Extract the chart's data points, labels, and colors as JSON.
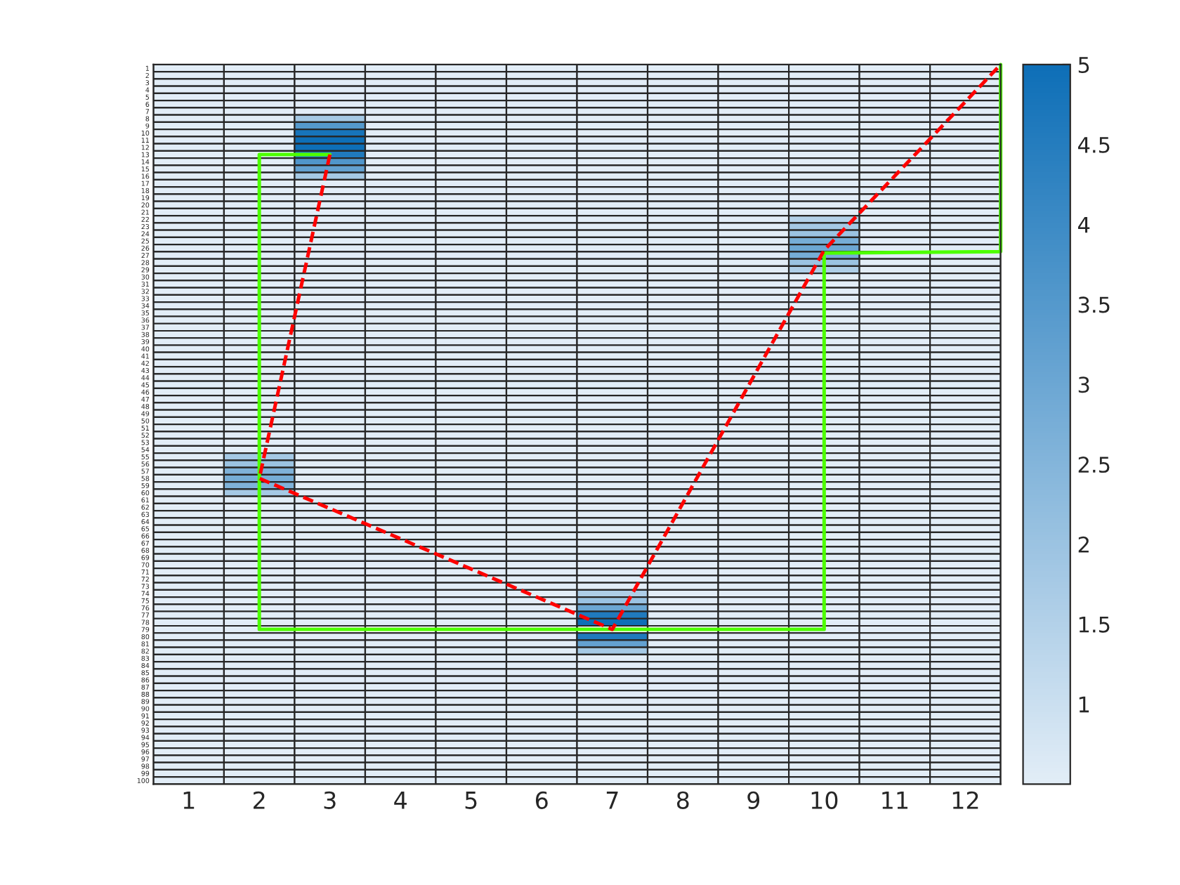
{
  "chart_data": {
    "type": "heatmap",
    "x": [
      1,
      2,
      3,
      4,
      5,
      6,
      7,
      8,
      9,
      10,
      11,
      12
    ],
    "xlim": [
      0.5,
      12.5
    ],
    "xticks": [
      1,
      2,
      3,
      4,
      5,
      6,
      7,
      8,
      9,
      10,
      11,
      12
    ],
    "ylim": [
      100.5,
      0.5
    ],
    "yticks": [
      1,
      2,
      3,
      4,
      5,
      6,
      7,
      8,
      9,
      10,
      11,
      12,
      13,
      14,
      15,
      16,
      17,
      18,
      19,
      20,
      21,
      22,
      23,
      24,
      25,
      26,
      27,
      28,
      29,
      30,
      31,
      32,
      33,
      34,
      35,
      36,
      37,
      38,
      39,
      40,
      41,
      42,
      43,
      44,
      45,
      46,
      47,
      48,
      49,
      50,
      51,
      52,
      53,
      54,
      55,
      56,
      57,
      58,
      59,
      60,
      61,
      62,
      63,
      64,
      65,
      66,
      67,
      68,
      69,
      70,
      71,
      72,
      73,
      74,
      75,
      76,
      77,
      78,
      79,
      80,
      81,
      82,
      83,
      84,
      85,
      86,
      87,
      88,
      89,
      90,
      91,
      92,
      93,
      94,
      95,
      96,
      97,
      98,
      99,
      100
    ],
    "colors": [
      "#e2edf7",
      "#0e6fb7"
    ],
    "clim": [
      0.5,
      5
    ],
    "cticks": [
      1,
      1.5,
      2,
      2.5,
      3,
      3.5,
      4,
      4.5,
      5
    ],
    "cells": [
      [
        0.5,
        0.5,
        0.5,
        0.5,
        0.5,
        0.5,
        0.5,
        0.5,
        0.5,
        0.5,
        0.5,
        0.5
      ],
      [
        0.5,
        0.5,
        0.5,
        0.5,
        0.5,
        0.5,
        0.5,
        0.5,
        0.5,
        0.5,
        0.5,
        0.5
      ],
      [
        0.5,
        0.5,
        0.5,
        0.5,
        0.5,
        0.5,
        0.5,
        0.5,
        0.5,
        0.5,
        0.5,
        0.5
      ],
      [
        0.5,
        0.5,
        0.5,
        0.5,
        0.5,
        0.5,
        0.5,
        0.5,
        0.5,
        0.5,
        0.5,
        0.5
      ],
      [
        0.5,
        0.5,
        0.5,
        0.5,
        0.5,
        0.5,
        0.5,
        0.5,
        0.5,
        0.5,
        0.5,
        0.5
      ],
      [
        0.5,
        0.5,
        0.5,
        0.5,
        0.5,
        0.5,
        0.5,
        0.5,
        0.5,
        0.5,
        0.5,
        0.5
      ],
      [
        0.5,
        0.5,
        0.5,
        0.5,
        0.5,
        0.5,
        0.5,
        0.5,
        0.5,
        0.5,
        0.5,
        0.5
      ],
      [
        0.5,
        0.5,
        1.8,
        0.5,
        0.5,
        0.5,
        0.5,
        0.5,
        0.5,
        0.5,
        0.5,
        0.5
      ],
      [
        0.5,
        0.5,
        3.5,
        0.5,
        0.5,
        0.5,
        0.5,
        0.5,
        0.5,
        0.5,
        0.5,
        0.5
      ],
      [
        0.5,
        0.5,
        4.8,
        0.5,
        0.5,
        0.5,
        0.5,
        0.5,
        0.5,
        0.5,
        0.5,
        0.5
      ],
      [
        0.5,
        0.5,
        5,
        0.5,
        0.5,
        0.5,
        0.5,
        0.5,
        0.5,
        0.5,
        0.5,
        0.5
      ],
      [
        0.5,
        0.5,
        5,
        0.5,
        0.5,
        0.5,
        0.5,
        0.5,
        0.5,
        0.5,
        0.5,
        0.5
      ],
      [
        0.5,
        0.5,
        4.6,
        0.5,
        0.5,
        0.5,
        0.5,
        0.5,
        0.5,
        0.5,
        0.5,
        0.5
      ],
      [
        0.5,
        0.5,
        3.6,
        0.5,
        0.5,
        0.5,
        0.5,
        0.5,
        0.5,
        0.5,
        0.5,
        0.5
      ],
      [
        0.5,
        0.5,
        3.2,
        0.5,
        0.5,
        0.5,
        0.5,
        0.5,
        0.5,
        0.5,
        0.5,
        0.5
      ],
      [
        0.5,
        0.5,
        1.8,
        0.5,
        0.5,
        0.5,
        0.5,
        0.5,
        0.5,
        0.5,
        0.5,
        0.5
      ],
      [
        0.5,
        0.5,
        0.5,
        0.5,
        0.5,
        0.5,
        0.5,
        0.5,
        0.5,
        0.5,
        0.5,
        0.5
      ],
      [
        0.5,
        0.5,
        0.5,
        0.5,
        0.5,
        0.5,
        0.5,
        0.5,
        0.5,
        0.5,
        0.5,
        0.5
      ],
      [
        0.5,
        0.5,
        0.5,
        0.5,
        0.5,
        0.5,
        0.5,
        0.5,
        0.5,
        0.5,
        0.5,
        0.5
      ],
      [
        0.5,
        0.5,
        0.5,
        0.5,
        0.5,
        0.5,
        0.5,
        0.5,
        0.5,
        0.5,
        0.5,
        0.5
      ],
      [
        0.5,
        0.5,
        0.5,
        0.5,
        0.5,
        0.5,
        0.5,
        0.5,
        0.5,
        0.5,
        0.5,
        0.5
      ],
      [
        0.5,
        0.5,
        0.5,
        0.5,
        0.5,
        0.5,
        0.5,
        0.5,
        0.5,
        1.5,
        0.5,
        0.5
      ],
      [
        0.5,
        0.5,
        0.5,
        0.5,
        0.5,
        0.5,
        0.5,
        0.5,
        0.5,
        1.8,
        0.5,
        0.5
      ],
      [
        0.5,
        0.5,
        0.5,
        0.5,
        0.5,
        0.5,
        0.5,
        0.5,
        0.5,
        2,
        0.5,
        0.5
      ],
      [
        0.5,
        0.5,
        0.5,
        0.5,
        0.5,
        0.5,
        0.5,
        0.5,
        0.5,
        2.8,
        0.5,
        0.5
      ],
      [
        0.5,
        0.5,
        0.5,
        0.5,
        0.5,
        0.5,
        0.5,
        0.5,
        0.5,
        3,
        0.5,
        0.5
      ],
      [
        0.5,
        0.5,
        0.5,
        0.5,
        0.5,
        0.5,
        0.5,
        0.5,
        0.5,
        2.8,
        0.5,
        0.5
      ],
      [
        0.5,
        0.5,
        0.5,
        0.5,
        0.5,
        0.5,
        0.5,
        0.5,
        0.5,
        2,
        0.5,
        0.5
      ],
      [
        0.5,
        0.5,
        0.5,
        0.5,
        0.5,
        0.5,
        0.5,
        0.5,
        0.5,
        1.6,
        0.5,
        0.5
      ],
      [
        0.5,
        0.5,
        0.5,
        0.5,
        0.5,
        0.5,
        0.5,
        0.5,
        0.5,
        0.5,
        0.5,
        0.5
      ],
      [
        0.5,
        0.5,
        0.5,
        0.5,
        0.5,
        0.5,
        0.5,
        0.5,
        0.5,
        0.5,
        0.5,
        0.5
      ],
      [
        0.5,
        0.5,
        0.5,
        0.5,
        0.5,
        0.5,
        0.5,
        0.5,
        0.5,
        0.5,
        0.5,
        0.5
      ],
      [
        0.5,
        0.5,
        0.5,
        0.5,
        0.5,
        0.5,
        0.5,
        0.5,
        0.5,
        0.5,
        0.5,
        0.5
      ],
      [
        0.5,
        0.5,
        0.5,
        0.5,
        0.5,
        0.5,
        0.5,
        0.5,
        0.5,
        0.5,
        0.5,
        0.5
      ],
      [
        0.5,
        0.5,
        0.5,
        0.5,
        0.5,
        0.5,
        0.5,
        0.5,
        0.5,
        0.5,
        0.5,
        0.5
      ],
      [
        0.5,
        0.5,
        0.5,
        0.5,
        0.5,
        0.5,
        0.5,
        0.5,
        0.5,
        0.5,
        0.5,
        0.5
      ],
      [
        0.5,
        0.5,
        0.5,
        0.5,
        0.5,
        0.5,
        0.5,
        0.5,
        0.5,
        0.5,
        0.5,
        0.5
      ],
      [
        0.5,
        0.5,
        0.5,
        0.5,
        0.5,
        0.5,
        0.5,
        0.5,
        0.5,
        0.5,
        0.5,
        0.5
      ],
      [
        0.5,
        0.5,
        0.5,
        0.5,
        0.5,
        0.5,
        0.5,
        0.5,
        0.5,
        0.5,
        0.5,
        0.5
      ],
      [
        0.5,
        0.5,
        0.5,
        0.5,
        0.5,
        0.5,
        0.5,
        0.5,
        0.5,
        0.5,
        0.5,
        0.5
      ],
      [
        0.5,
        0.5,
        0.5,
        0.5,
        0.5,
        0.5,
        0.5,
        0.5,
        0.5,
        0.5,
        0.5,
        0.5
      ],
      [
        0.5,
        0.5,
        0.5,
        0.5,
        0.5,
        0.5,
        0.5,
        0.5,
        0.5,
        0.5,
        0.5,
        0.5
      ],
      [
        0.5,
        0.5,
        0.5,
        0.5,
        0.5,
        0.5,
        0.5,
        0.5,
        0.5,
        0.5,
        0.5,
        0.5
      ],
      [
        0.5,
        0.5,
        0.5,
        0.5,
        0.5,
        0.5,
        0.5,
        0.5,
        0.5,
        0.5,
        0.5,
        0.5
      ],
      [
        0.5,
        0.5,
        0.5,
        0.5,
        0.5,
        0.5,
        0.5,
        0.5,
        0.5,
        0.5,
        0.5,
        0.5
      ],
      [
        0.5,
        0.5,
        0.5,
        0.5,
        0.5,
        0.5,
        0.5,
        0.5,
        0.5,
        0.5,
        0.5,
        0.5
      ],
      [
        0.5,
        0.5,
        0.5,
        0.5,
        0.5,
        0.5,
        0.5,
        0.5,
        0.5,
        0.5,
        0.5,
        0.5
      ],
      [
        0.5,
        0.5,
        0.5,
        0.5,
        0.5,
        0.5,
        0.5,
        0.5,
        0.5,
        0.5,
        0.5,
        0.5
      ],
      [
        0.5,
        0.5,
        0.5,
        0.5,
        0.5,
        0.5,
        0.5,
        0.5,
        0.5,
        0.5,
        0.5,
        0.5
      ],
      [
        0.5,
        0.5,
        0.5,
        0.5,
        0.5,
        0.5,
        0.5,
        0.5,
        0.5,
        0.5,
        0.5,
        0.5
      ],
      [
        0.5,
        0.5,
        0.5,
        0.5,
        0.5,
        0.5,
        0.5,
        0.5,
        0.5,
        0.5,
        0.5,
        0.5
      ],
      [
        0.5,
        0.5,
        0.5,
        0.5,
        0.5,
        0.5,
        0.5,
        0.5,
        0.5,
        0.5,
        0.5,
        0.5
      ],
      [
        0.5,
        0.5,
        0.5,
        0.5,
        0.5,
        0.5,
        0.5,
        0.5,
        0.5,
        0.5,
        0.5,
        0.5
      ],
      [
        0.5,
        0.5,
        0.5,
        0.5,
        0.5,
        0.5,
        0.5,
        0.5,
        0.5,
        0.5,
        0.5,
        0.5
      ],
      [
        0.5,
        1.8,
        0.5,
        0.5,
        0.5,
        0.5,
        0.5,
        0.5,
        0.5,
        0.5,
        0.5,
        0.5
      ],
      [
        0.5,
        2,
        0.5,
        0.5,
        0.5,
        0.5,
        0.5,
        0.5,
        0.5,
        0.5,
        0.5,
        0.5
      ],
      [
        0.5,
        2.6,
        0.5,
        0.5,
        0.5,
        0.5,
        0.5,
        0.5,
        0.5,
        0.5,
        0.5,
        0.5
      ],
      [
        0.5,
        2.8,
        0.5,
        0.5,
        0.5,
        0.5,
        0.5,
        0.5,
        0.5,
        0.5,
        0.5,
        0.5
      ],
      [
        0.5,
        2.6,
        0.5,
        0.5,
        0.5,
        0.5,
        0.5,
        0.5,
        0.5,
        0.5,
        0.5,
        0.5
      ],
      [
        0.5,
        1.8,
        0.5,
        0.5,
        0.5,
        0.5,
        0.5,
        0.5,
        0.5,
        0.5,
        0.5,
        0.5
      ],
      [
        0.5,
        0.5,
        0.5,
        0.5,
        0.5,
        0.5,
        0.5,
        0.5,
        0.5,
        0.5,
        0.5,
        0.5
      ],
      [
        0.5,
        0.5,
        0.5,
        0.5,
        0.5,
        0.5,
        0.5,
        0.5,
        0.5,
        0.5,
        0.5,
        0.5
      ],
      [
        0.5,
        0.5,
        0.5,
        0.5,
        0.5,
        0.5,
        0.5,
        0.5,
        0.5,
        0.5,
        0.5,
        0.5
      ],
      [
        0.5,
        0.5,
        0.5,
        0.5,
        0.5,
        0.5,
        0.5,
        0.5,
        0.5,
        0.5,
        0.5,
        0.5
      ],
      [
        0.5,
        0.5,
        0.5,
        0.5,
        0.5,
        0.5,
        0.5,
        0.5,
        0.5,
        0.5,
        0.5,
        0.5
      ],
      [
        0.5,
        0.5,
        0.5,
        0.5,
        0.5,
        0.5,
        0.5,
        0.5,
        0.5,
        0.5,
        0.5,
        0.5
      ],
      [
        0.5,
        0.5,
        0.5,
        0.5,
        0.5,
        0.5,
        0.5,
        0.5,
        0.5,
        0.5,
        0.5,
        0.5
      ],
      [
        0.5,
        0.5,
        0.5,
        0.5,
        0.5,
        0.5,
        0.5,
        0.5,
        0.5,
        0.5,
        0.5,
        0.5
      ],
      [
        0.5,
        0.5,
        0.5,
        0.5,
        0.5,
        0.5,
        0.5,
        0.5,
        0.5,
        0.5,
        0.5,
        0.5
      ],
      [
        0.5,
        0.5,
        0.5,
        0.5,
        0.5,
        0.5,
        0.5,
        0.5,
        0.5,
        0.5,
        0.5,
        0.5
      ],
      [
        0.5,
        0.5,
        0.5,
        0.5,
        0.5,
        0.5,
        0.5,
        0.5,
        0.5,
        0.5,
        0.5,
        0.5
      ],
      [
        0.5,
        0.5,
        0.5,
        0.5,
        0.5,
        0.5,
        0.5,
        0.5,
        0.5,
        0.5,
        0.5,
        0.5
      ],
      [
        0.5,
        0.5,
        0.5,
        0.5,
        0.5,
        0.5,
        0.5,
        0.5,
        0.5,
        0.5,
        0.5,
        0.5
      ],
      [
        0.5,
        0.5,
        0.5,
        0.5,
        0.5,
        0.5,
        1.6,
        0.5,
        0.5,
        0.5,
        0.5,
        0.5
      ],
      [
        0.5,
        0.5,
        0.5,
        0.5,
        0.5,
        0.5,
        2,
        0.5,
        0.5,
        0.5,
        0.5,
        0.5
      ],
      [
        0.5,
        0.5,
        0.5,
        0.5,
        0.5,
        0.5,
        3,
        0.5,
        0.5,
        0.5,
        0.5,
        0.5
      ],
      [
        0.5,
        0.5,
        0.5,
        0.5,
        0.5,
        0.5,
        4.6,
        0.5,
        0.5,
        0.5,
        0.5,
        0.5
      ],
      [
        0.5,
        0.5,
        0.5,
        0.5,
        0.5,
        0.5,
        5,
        0.5,
        0.5,
        0.5,
        0.5,
        0.5
      ],
      [
        0.5,
        0.5,
        null,
        null,
        null,
        null,
        null,
        null,
        null,
        0.5,
        0.5,
        0.5
      ],
      [
        0.5,
        0.5,
        0.5,
        0.5,
        0.5,
        0.5,
        4.6,
        0.5,
        0.5,
        0.5,
        0.5,
        0.5
      ],
      [
        0.5,
        0.5,
        0.5,
        0.5,
        0.5,
        0.5,
        3.2,
        0.5,
        0.5,
        0.5,
        0.5,
        0.5
      ],
      [
        0.5,
        0.5,
        0.5,
        0.5,
        0.5,
        0.5,
        1.8,
        0.5,
        0.5,
        0.5,
        0.5,
        0.5
      ],
      [
        0.5,
        0.5,
        0.5,
        0.5,
        0.5,
        0.5,
        0.5,
        0.5,
        0.5,
        0.5,
        0.5,
        0.5
      ],
      [
        0.5,
        0.5,
        0.5,
        0.5,
        0.5,
        0.5,
        0.5,
        0.5,
        0.5,
        0.5,
        0.5,
        0.5
      ],
      [
        0.5,
        0.5,
        0.5,
        0.5,
        0.5,
        0.5,
        0.5,
        0.5,
        0.5,
        0.5,
        0.5,
        0.5
      ],
      [
        0.5,
        0.5,
        0.5,
        0.5,
        0.5,
        0.5,
        0.5,
        0.5,
        0.5,
        0.5,
        0.5,
        0.5
      ],
      [
        0.5,
        0.5,
        0.5,
        0.5,
        0.5,
        0.5,
        0.5,
        0.5,
        0.5,
        0.5,
        0.5,
        0.5
      ],
      [
        0.5,
        0.5,
        0.5,
        0.5,
        0.5,
        0.5,
        0.5,
        0.5,
        0.5,
        0.5,
        0.5,
        0.5
      ],
      [
        0.5,
        0.5,
        0.5,
        0.5,
        0.5,
        0.5,
        0.5,
        0.5,
        0.5,
        0.5,
        0.5,
        0.5
      ],
      [
        0.5,
        0.5,
        0.5,
        0.5,
        0.5,
        0.5,
        0.5,
        0.5,
        0.5,
        0.5,
        0.5,
        0.5
      ],
      [
        0.5,
        0.5,
        0.5,
        0.5,
        0.5,
        0.5,
        0.5,
        0.5,
        0.5,
        0.5,
        0.5,
        0.5
      ],
      [
        0.5,
        0.5,
        0.5,
        0.5,
        0.5,
        0.5,
        0.5,
        0.5,
        0.5,
        0.5,
        0.5,
        0.5
      ],
      [
        0.5,
        0.5,
        0.5,
        0.5,
        0.5,
        0.5,
        0.5,
        0.5,
        0.5,
        0.5,
        0.5,
        0.5
      ],
      [
        0.5,
        0.5,
        0.5,
        0.5,
        0.5,
        0.5,
        0.5,
        0.5,
        0.5,
        0.5,
        0.5,
        0.5
      ],
      [
        0.5,
        0.5,
        0.5,
        0.5,
        0.5,
        0.5,
        0.5,
        0.5,
        0.5,
        0.5,
        0.5,
        0.5
      ],
      [
        0.5,
        0.5,
        0.5,
        0.5,
        0.5,
        0.5,
        0.5,
        0.5,
        0.5,
        0.5,
        0.5,
        0.5
      ],
      [
        0.5,
        0.5,
        0.5,
        0.5,
        0.5,
        0.5,
        0.5,
        0.5,
        0.5,
        0.5,
        0.5,
        0.5
      ],
      [
        0.5,
        0.5,
        0.5,
        0.5,
        0.5,
        0.5,
        0.5,
        0.5,
        0.5,
        0.5,
        0.5,
        0.5
      ],
      [
        0.5,
        0.5,
        0.5,
        0.5,
        0.5,
        0.5,
        0.5,
        0.5,
        0.5,
        0.5,
        0.5,
        0.5
      ],
      [
        0.5,
        0.5,
        0.5,
        0.5,
        0.5,
        0.5,
        0.5,
        0.5,
        0.5,
        0.5,
        0.5,
        0.5
      ]
    ],
    "series": [
      {
        "type": "line",
        "color": "#4dff00",
        "line_style": "solid",
        "x": [
          3,
          2,
          2,
          10,
          10,
          12.5,
          12.5
        ],
        "values": [
          13,
          13,
          79,
          79,
          26.7,
          26.5,
          0.5
        ]
      },
      {
        "type": "line",
        "color": "#ff0000",
        "line_style": "dashed",
        "x": [
          3,
          2,
          7,
          10,
          12.5
        ],
        "values": [
          13,
          58,
          79,
          26.3,
          0.5
        ]
      }
    ]
  }
}
